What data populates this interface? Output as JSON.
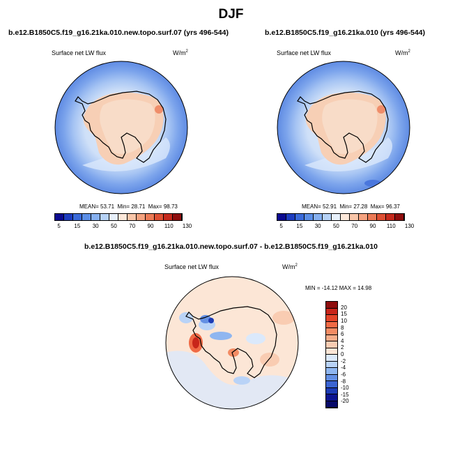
{
  "figure": {
    "title": "DJF",
    "panels": [
      {
        "run_title": "b.e12.B1850C5.f19_g16.21ka.010.new.topo.surf.07 (yrs 496-544)",
        "variable": "Surface net LW flux",
        "units_base": "W/m",
        "units_exp": "2",
        "stats": {
          "mean_label": "MEAN=",
          "mean": "53.71",
          "min_label": "Min=",
          "min": "28.71",
          "max_label": "Max=",
          "max": "98.73"
        }
      },
      {
        "run_title": "b.e12.B1850C5.f19_g16.21ka.010 (yrs 496-544)",
        "variable": "Surface net LW flux",
        "units_base": "W/m",
        "units_exp": "2",
        "stats": {
          "mean_label": "MEAN=",
          "mean": "52.91",
          "min_label": "Min=",
          "min": "27.28",
          "max_label": "Max=",
          "max": "96.37"
        }
      }
    ],
    "diff_panel": {
      "run_title": "b.e12.B1850C5.f19_g16.21ka.010.new.topo.surf.07 - b.e12.B1850C5.f19_g16.21ka.010",
      "variable": "Surface net LW flux",
      "units_base": "W/m",
      "units_exp": "2",
      "minmax_text": "MIN = -14.12 MAX =  14.98"
    },
    "colorbar_labels": [
      "5",
      "15",
      "30",
      "50",
      "70",
      "90",
      "110",
      "130"
    ],
    "colorbar_colors": [
      "#0b0a8f",
      "#1d3cbf",
      "#3a6ad9",
      "#5b8ee6",
      "#86b0f0",
      "#b6d2f7",
      "#e7f0fb",
      "#fde8da",
      "#f9c6a9",
      "#f4a27f",
      "#ec7a56",
      "#de4f33",
      "#c5291c",
      "#8e0d0d"
    ],
    "diff_labels": [
      "20",
      "15",
      "10",
      "8",
      "6",
      "4",
      "2",
      "0",
      "-2",
      "-4",
      "-6",
      "-8",
      "-10",
      "-15",
      "-20"
    ],
    "diff_colors": [
      "#8e0d0d",
      "#c8251a",
      "#e34429",
      "#f06a45",
      "#f38c64",
      "#f6ad8a",
      "#f9ccb2",
      "#fce6d6",
      "#dbe9fb",
      "#b9d3f7",
      "#8fb6f0",
      "#6490e4",
      "#3a64d2",
      "#1c3bb5",
      "#0c1490",
      "#070a6a"
    ]
  }
}
